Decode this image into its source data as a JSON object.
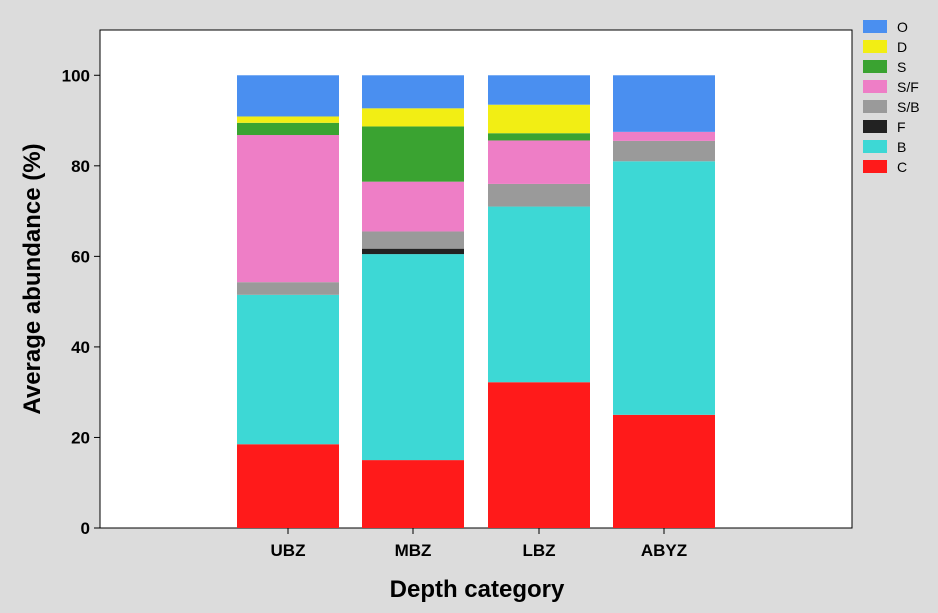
{
  "chart_data": {
    "type": "bar",
    "stacked": true,
    "xlabel": "Depth category",
    "ylabel": "Average abundance (%)",
    "ylim": [
      0,
      110
    ],
    "yticks": [
      0,
      20,
      40,
      60,
      80,
      100
    ],
    "grid": false,
    "legend_position": "right",
    "categories": [
      "UBZ",
      "MBZ",
      "LBZ",
      "ABYZ"
    ],
    "series": [
      {
        "name": "C",
        "color": "#ff1a1a",
        "values": [
          18.5,
          15,
          32.2,
          25
        ]
      },
      {
        "name": "B",
        "color": "#3dd8d5",
        "values": [
          33,
          45.5,
          38.8,
          56
        ]
      },
      {
        "name": "F",
        "color": "#222222",
        "values": [
          0,
          1.2,
          0,
          0
        ]
      },
      {
        "name": "S/B",
        "color": "#9a9a9a",
        "values": [
          2.8,
          3.8,
          5,
          4.5
        ]
      },
      {
        "name": "S/F",
        "color": "#ee7ec6",
        "values": [
          32.5,
          11,
          9.6,
          2
        ]
      },
      {
        "name": "S",
        "color": "#3aa331",
        "values": [
          2.7,
          12.2,
          1.6,
          0
        ]
      },
      {
        "name": "D",
        "color": "#f2ee14",
        "values": [
          1.4,
          4,
          6.3,
          0
        ]
      },
      {
        "name": "O",
        "color": "#4a8ff0",
        "values": [
          9.1,
          7.3,
          6.5,
          12.5
        ]
      }
    ],
    "legend_order": [
      "O",
      "D",
      "S",
      "S/F",
      "S/B",
      "F",
      "B",
      "C"
    ]
  }
}
